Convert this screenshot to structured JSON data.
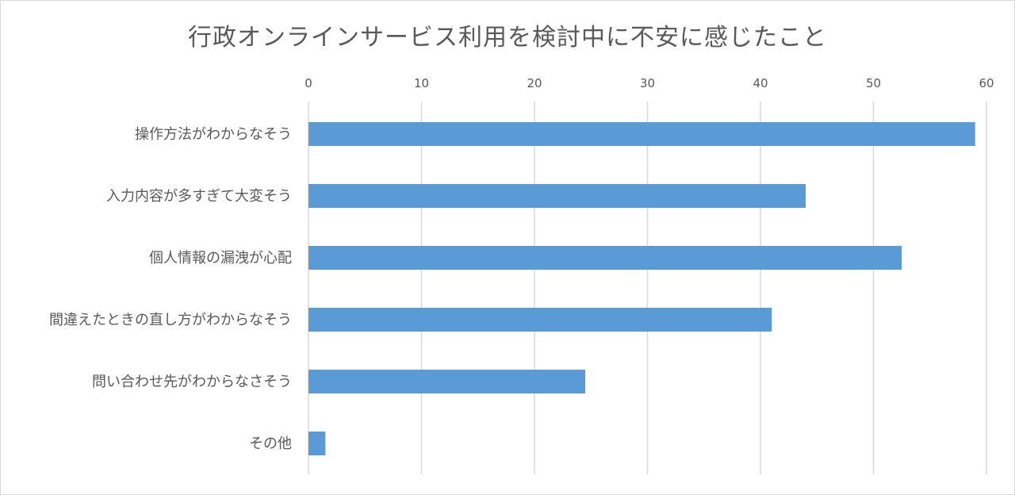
{
  "chart_data": {
    "type": "bar",
    "orientation": "horizontal",
    "title": "行政オンラインサービス利用を検討中に不安に感じたこと",
    "xlabel": "",
    "ylabel": "",
    "xlim": [
      0,
      60
    ],
    "x_ticks": [
      0,
      10,
      20,
      30,
      40,
      50,
      60
    ],
    "x_axis_position": "top",
    "grid": true,
    "legend": "none",
    "bar_color": "#5b9bd5",
    "categories": [
      "操作方法がわからなそう",
      "入力内容が多すぎて大変そう",
      "個人情報の漏洩が心配",
      "間違えたときの直し方がわからなそう",
      "問い合わせ先がわからなさそう",
      "その他"
    ],
    "values": [
      59,
      44,
      52.5,
      41,
      24.5,
      1.5
    ]
  }
}
